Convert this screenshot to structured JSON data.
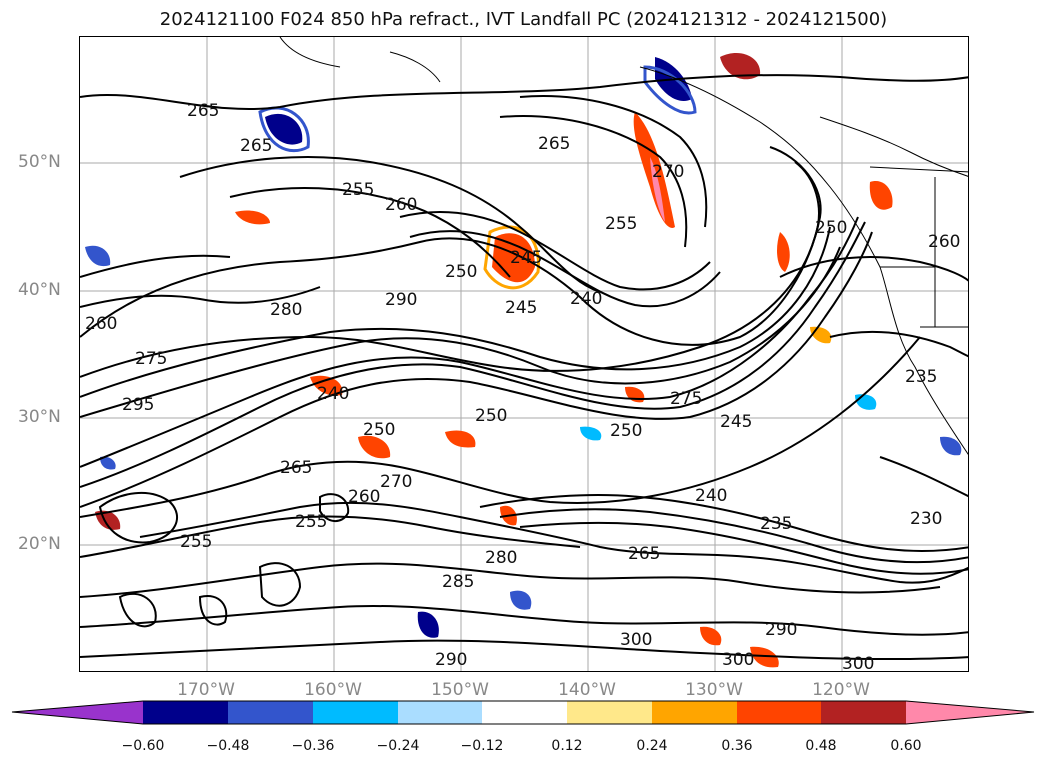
{
  "title": "2024121100 F024 850 hPa refract., IVT Landfall PC (2024121312 - 2024121500)",
  "map": {
    "lat_labels": [
      "50°N",
      "40°N",
      "30°N",
      "20°N"
    ],
    "lon_labels": [
      "170°W",
      "160°W",
      "150°W",
      "140°W",
      "130°W",
      "120°W"
    ],
    "contour_labels": [
      "265",
      "265",
      "255",
      "260",
      "265",
      "270",
      "255",
      "245",
      "250",
      "245",
      "240",
      "290",
      "280",
      "260",
      "275",
      "295",
      "240",
      "250",
      "250",
      "250",
      "275",
      "245",
      "265",
      "270",
      "260",
      "255",
      "255",
      "280",
      "285",
      "265",
      "240",
      "235",
      "230",
      "300",
      "290",
      "300",
      "300",
      "290",
      "250",
      "260",
      "235"
    ]
  },
  "colorbar": {
    "tick_labels": [
      "−0.60",
      "−0.48",
      "−0.36",
      "−0.24",
      "−0.12",
      "0.12",
      "0.24",
      "0.36",
      "0.48",
      "0.60"
    ],
    "colors": [
      "#9933cc",
      "#00008b",
      "#3355cc",
      "#00bbff",
      "#aaddff",
      "#ffffff",
      "#ffe88a",
      "#ffa500",
      "#ff4400",
      "#b22222",
      "#ff88aa"
    ]
  }
}
